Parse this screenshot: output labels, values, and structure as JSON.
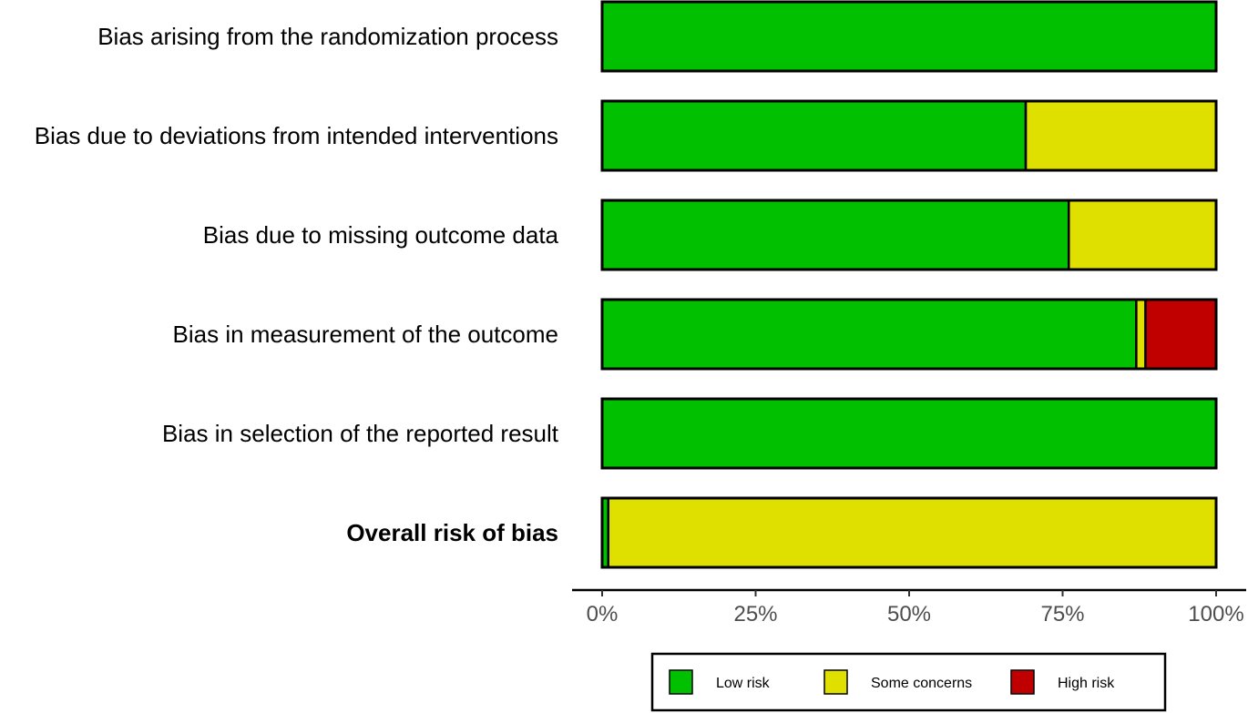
{
  "chart_data": {
    "type": "bar",
    "orientation": "horizontal",
    "stacked": true,
    "categories": [
      "Bias arising from the randomization process",
      "Bias due to deviations from intended interventions",
      "Bias due to missing outcome data",
      "Bias in measurement of the outcome",
      "Bias in selection of the reported result",
      "Overall risk of bias"
    ],
    "emphasized_category": "Overall risk of bias",
    "series": [
      {
        "name": "Low risk",
        "color": "#00c000",
        "values": [
          100,
          69,
          76,
          87,
          100,
          1
        ]
      },
      {
        "name": "Some concerns",
        "color": "#e0e000",
        "values": [
          0,
          31,
          24,
          1.5,
          0,
          99
        ]
      },
      {
        "name": "High risk",
        "color": "#c00000",
        "values": [
          0,
          0,
          0,
          11.5,
          0,
          0
        ]
      }
    ],
    "xlim": [
      0,
      100
    ],
    "x_ticks": [
      "0%",
      "25%",
      "50%",
      "75%",
      "100%"
    ],
    "x_tick_values": [
      0,
      25,
      50,
      75,
      100
    ],
    "grid": false,
    "legend_position": "bottom"
  }
}
